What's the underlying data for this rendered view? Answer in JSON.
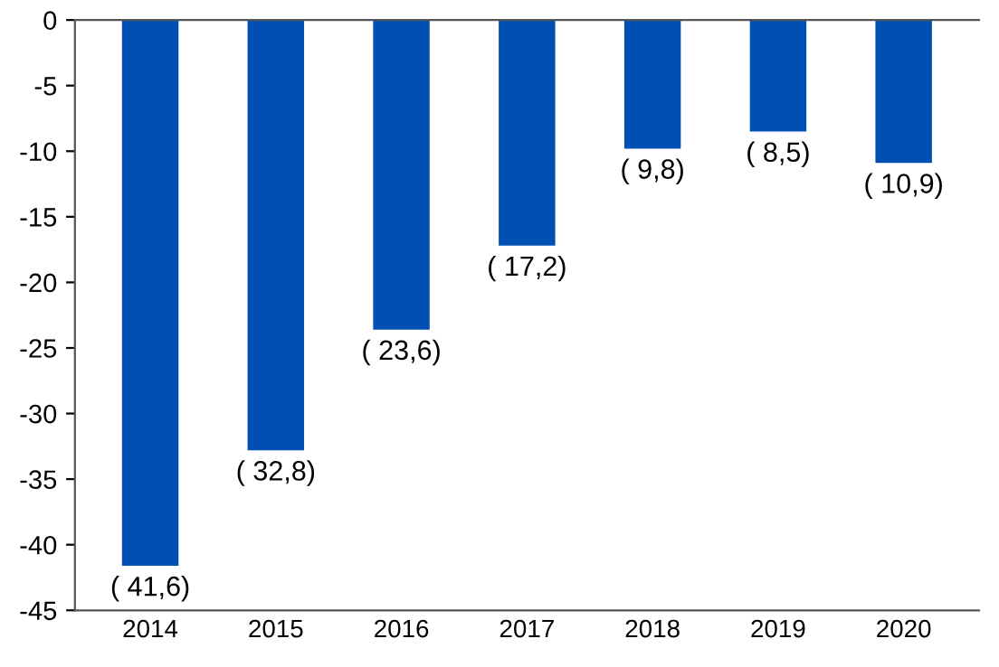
{
  "chart_data": {
    "type": "bar",
    "categories": [
      "2014",
      "2015",
      "2016",
      "2017",
      "2018",
      "2019",
      "2020"
    ],
    "values": [
      -41.6,
      -32.8,
      -23.6,
      -17.2,
      -9.8,
      -8.5,
      -10.9
    ],
    "value_labels": [
      "( 41,6)",
      "( 32,8)",
      "( 23,6)",
      "( 17,2)",
      "( 9,8)",
      "( 8,5)",
      "( 10,9)"
    ],
    "color": "#0050b4",
    "ylim": [
      -45,
      0
    ],
    "yticks": [
      0,
      -5,
      -10,
      -15,
      -20,
      -25,
      -30,
      -35,
      -40,
      -45
    ],
    "grid": false,
    "legend": false
  }
}
